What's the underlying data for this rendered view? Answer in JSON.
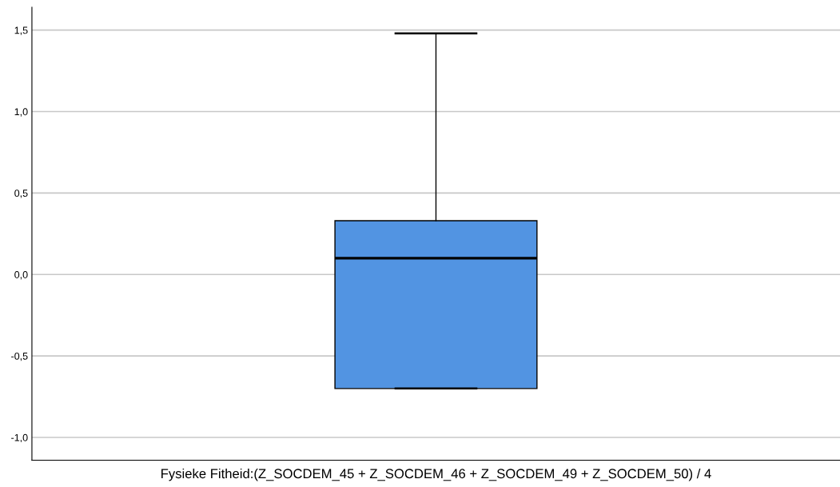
{
  "chart_data": {
    "type": "box",
    "xlabel": "Fysieke Fitheid:(Z_SOCDEM_45 + Z_SOCDEM_46 + Z_SOCDEM_49 + Z_SOCDEM_50) / 4",
    "categories": [
      null
    ],
    "series": [
      {
        "color": "#5294e2",
        "boxes": [
          {
            "low": -0.7,
            "q1": -0.7,
            "median": 0.1,
            "q3": 0.33,
            "high": 1.48
          }
        ]
      }
    ],
    "ylim": [
      -1.14,
      1.64
    ],
    "yticks": [
      {
        "value": -1.0,
        "label": "-1,0"
      },
      {
        "value": -0.5,
        "label": "-0,5"
      },
      {
        "value": 0.0,
        "label": "0,0"
      },
      {
        "value": 0.5,
        "label": "0,5"
      },
      {
        "value": 1.0,
        "label": "1,0"
      },
      {
        "value": 1.5,
        "label": "1,5"
      }
    ],
    "grid": "y"
  }
}
